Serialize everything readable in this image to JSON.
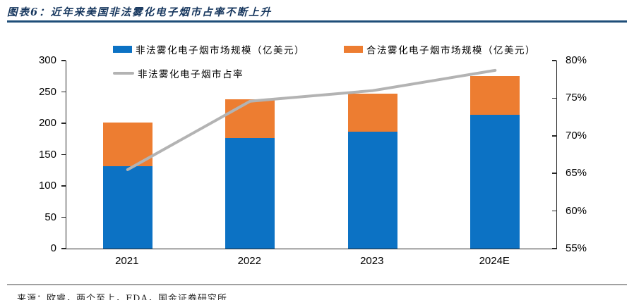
{
  "header": {
    "title": "图表6：近年来美国非法雾化电子烟市占率不断上升"
  },
  "footer": {
    "source": "来源：欧睿，两个至上，FDA，国金证券研究所"
  },
  "colors": {
    "illegal_bar_blue": "#0C72C4",
    "legal_bar_orange": "#ED7D31",
    "share_line_gray": "#B3B3B3",
    "title_navy": "#17375E",
    "divider_blue": "#1F4E79"
  },
  "chart_data": {
    "type": "bar",
    "subtype": "stacked-bar with secondary-axis line",
    "title": "近年来美国非法雾化电子烟市占率不断上升",
    "categories": [
      "2021",
      "2022",
      "2023",
      "2024E"
    ],
    "series": [
      {
        "name": "非法雾化电子烟市场规模（亿美元）",
        "type": "bar",
        "stack": "total",
        "axis": "left",
        "color": "#0C72C4",
        "values": [
          131,
          176,
          186,
          214
        ]
      },
      {
        "name": "合法雾化电子烟市场规模（亿美元）",
        "type": "bar",
        "stack": "total",
        "axis": "left",
        "color": "#ED7D31",
        "values": [
          70,
          62,
          61,
          61
        ]
      },
      {
        "name": "非法雾化电子烟市占率",
        "type": "line",
        "axis": "right",
        "color": "#B3B3B3",
        "unit": "%",
        "values": [
          65.5,
          74.6,
          76.0,
          78.7
        ]
      }
    ],
    "left_axis": {
      "min": 0,
      "max": 300,
      "step": 50,
      "tick_labels": [
        "300",
        "250",
        "200",
        "150",
        "100",
        "50",
        "0"
      ]
    },
    "right_axis": {
      "min": 55,
      "max": 80,
      "step": 5,
      "tick_labels": [
        "80%",
        "75%",
        "70%",
        "65%",
        "60%",
        "55%"
      ]
    },
    "legend_position": "top",
    "gridlines": false
  }
}
